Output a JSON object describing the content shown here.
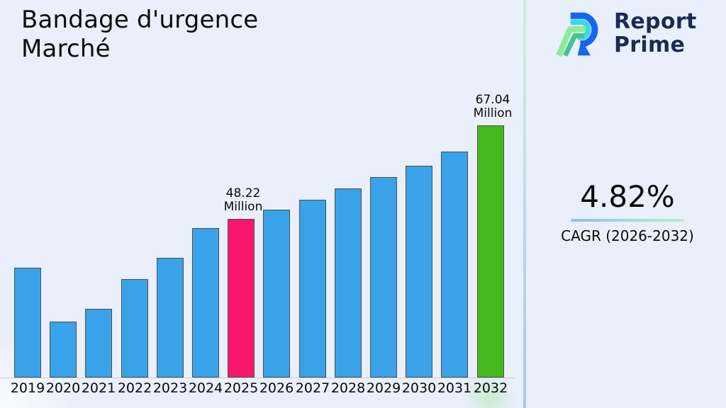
{
  "title": {
    "line1": "Bandage d'urgence",
    "line2": "Marché"
  },
  "logo": {
    "line1": "Report",
    "line2": "Prime"
  },
  "cagr": {
    "value": "4.82%",
    "label": "CAGR (2026-2032)"
  },
  "colors": {
    "bar_default": "#3aa2e8",
    "bar_highlight_2025": "#f6166d",
    "bar_highlight_2032": "#46b71d",
    "bar_border": "#4f4f4f",
    "background": "#e9effb",
    "divider_top": "#cdeedd",
    "divider_bottom": "#a9c6f4",
    "logo_navy": "#1b2b52",
    "logo_blue": "#1467ef",
    "logo_cyan": "#3fd7e6",
    "logo_green_light": "#8deb96",
    "logo_green_teal": "#43c193"
  },
  "chart_data": {
    "type": "bar",
    "title": "Bandage d'urgence Marché",
    "xlabel": "",
    "ylabel": "",
    "unit": "Million",
    "categories": [
      "2019",
      "2020",
      "2021",
      "2022",
      "2023",
      "2024",
      "2025",
      "2026",
      "2027",
      "2028",
      "2029",
      "2030",
      "2031",
      "2032"
    ],
    "values": [
      38.35,
      27.5,
      30.05,
      36.05,
      40.35,
      46.35,
      48.22,
      50.05,
      52.05,
      54.35,
      56.65,
      58.9,
      61.75,
      67.04
    ],
    "highlight_colors": {
      "2025": "#f6166d",
      "2032": "#46b71d"
    },
    "annotations": [
      {
        "category": "2025",
        "line1": "48.22",
        "line2": "Million"
      },
      {
        "category": "2032",
        "line1": "67.04",
        "line2": "Million"
      }
    ],
    "grid": false,
    "legend": false,
    "ylim": [
      16.2,
      83
    ]
  }
}
